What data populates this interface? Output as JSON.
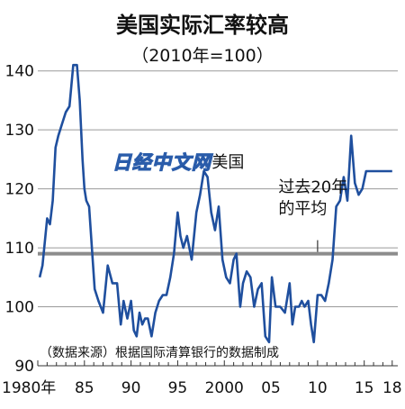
{
  "chart_data": {
    "type": "line",
    "title": "美国实际汇率较高",
    "subtitle": "（2010年=100）",
    "xlabel": "",
    "ylabel": "",
    "xlim": [
      1980,
      2018.6
    ],
    "ylim": [
      90,
      145
    ],
    "y_ticks": [
      90,
      100,
      110,
      120,
      130,
      140
    ],
    "x_ticks": [
      {
        "value": 1980,
        "label": "1980年"
      },
      {
        "value": 1985,
        "label": "85"
      },
      {
        "value": 1990,
        "label": "90"
      },
      {
        "value": 1995,
        "label": "95"
      },
      {
        "value": 2000,
        "label": "2000"
      },
      {
        "value": 2005,
        "label": "05"
      },
      {
        "value": 2010,
        "label": "10"
      },
      {
        "value": 2015,
        "label": "15"
      },
      {
        "value": 2018,
        "label": "18"
      }
    ],
    "grid": true,
    "series": [
      {
        "name": "美国",
        "color": "#1f4f9e",
        "x": [
          1980.2,
          1980.5,
          1981.0,
          1981.3,
          1981.6,
          1981.9,
          1982.2,
          1982.6,
          1983.0,
          1983.4,
          1983.8,
          1984.2,
          1984.5,
          1984.8,
          1985.0,
          1985.2,
          1985.5,
          1985.8,
          1986.1,
          1986.5,
          1987.0,
          1987.5,
          1988.0,
          1988.5,
          1988.9,
          1989.2,
          1989.6,
          1990.0,
          1990.3,
          1990.6,
          1990.9,
          1991.2,
          1991.5,
          1991.8,
          1992.2,
          1992.6,
          1993.0,
          1993.4,
          1993.8,
          1994.2,
          1994.6,
          1995.0,
          1995.3,
          1995.6,
          1996.0,
          1996.5,
          1997.0,
          1997.4,
          1997.8,
          1998.2,
          1998.6,
          1999.0,
          1999.4,
          1999.8,
          2000.2,
          2000.6,
          2001.0,
          2001.3,
          2001.7,
          2002.0,
          2002.4,
          2002.8,
          2003.2,
          2003.6,
          2004.0,
          2004.4,
          2004.8,
          2005.1,
          2005.5,
          2006.0,
          2006.5,
          2007.0,
          2007.3,
          2007.6,
          2008.0,
          2008.3,
          2008.6,
          2009.0,
          2009.3,
          2009.6,
          2010.0,
          2010.4,
          2010.8,
          2011.2,
          2011.6,
          2012.0,
          2012.4,
          2012.8,
          2013.2,
          2013.6,
          2014.0,
          2014.4,
          2014.8,
          2015.2,
          2015.6,
          2016.0,
          2016.4,
          2016.8,
          2017.2,
          2017.6,
          2018.0
        ],
        "values": [
          105,
          107,
          115,
          114,
          118,
          127,
          129,
          131,
          133,
          134,
          141,
          141,
          135,
          125,
          120,
          118,
          117,
          110,
          103,
          101,
          99,
          107,
          104,
          104,
          97,
          101,
          98,
          101,
          96,
          95,
          99,
          97,
          98,
          98,
          95,
          99,
          101,
          102,
          102,
          105,
          109,
          116,
          112,
          110,
          112,
          108,
          116,
          119,
          123,
          122,
          116,
          113,
          117,
          108,
          105,
          104,
          108,
          109,
          100,
          104,
          106,
          105,
          100,
          103,
          104,
          95,
          94,
          105,
          100,
          100,
          99,
          104,
          97,
          100,
          100,
          101,
          100,
          101,
          97,
          94,
          102,
          102,
          101,
          104,
          108,
          117,
          118,
          122,
          118,
          129,
          121,
          119,
          120,
          123,
          123,
          123,
          123,
          123,
          123,
          123,
          123
        ],
        "label": "美国"
      },
      {
        "name": "过去20年的平均",
        "color": "#8c8c8c",
        "x": [
          1980,
          2018.6
        ],
        "values": [
          109,
          109
        ],
        "label": "过去20年的平均"
      }
    ],
    "annotations": [
      {
        "text": "美国"
      },
      {
        "text": "过去20年的平均"
      }
    ],
    "source": "（数据来源）根据国际清算银行的数据制成",
    "watermark": "日经中文网"
  }
}
